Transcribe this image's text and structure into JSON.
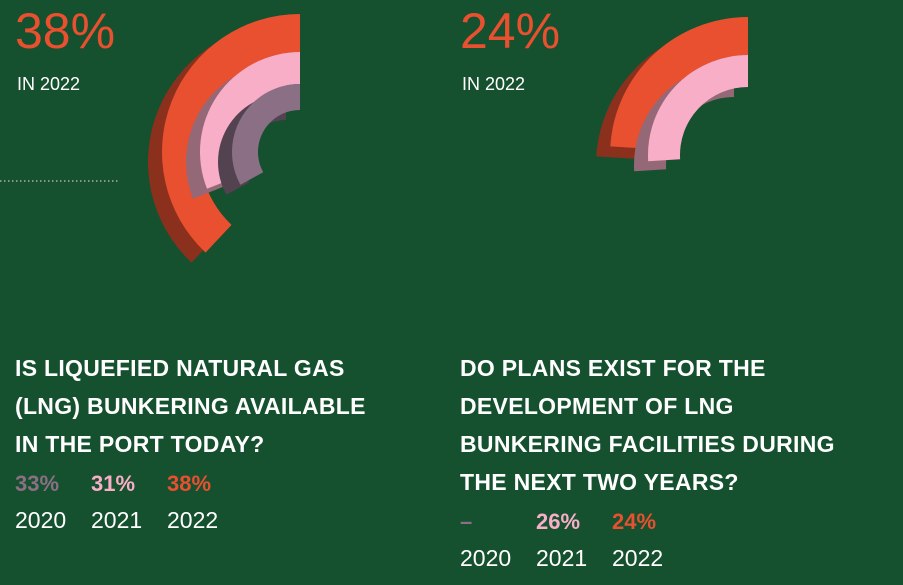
{
  "chart_data": [
    {
      "type": "radial",
      "headline": "38%",
      "headline_note": "IN 2022",
      "title": [
        "IS LIQUEFIED NATURAL GAS",
        "(LNG) BUNKERING AVAILABLE",
        "IN THE PORT TODAY?"
      ],
      "categories": [
        "2020",
        "2021",
        "2022"
      ],
      "values": [
        33,
        31,
        38
      ],
      "value_labels": [
        "33%",
        "31%",
        "38%"
      ],
      "colors": [
        "#8a6f85",
        "#f9aec8",
        "#e8502f"
      ]
    },
    {
      "type": "radial",
      "headline": "24%",
      "headline_note": "IN 2022",
      "title": [
        "DO PLANS EXIST FOR THE",
        "DEVELOPMENT OF LNG",
        "BUNKERING FACILITIES DURING",
        "THE NEXT TWO YEARS?"
      ],
      "categories": [
        "2020",
        "2021",
        "2022"
      ],
      "values": [
        null,
        26,
        24
      ],
      "value_labels": [
        "–",
        "26%",
        "24%"
      ],
      "colors": [
        "#8a6f85",
        "#f9aec8",
        "#e8502f"
      ]
    }
  ]
}
